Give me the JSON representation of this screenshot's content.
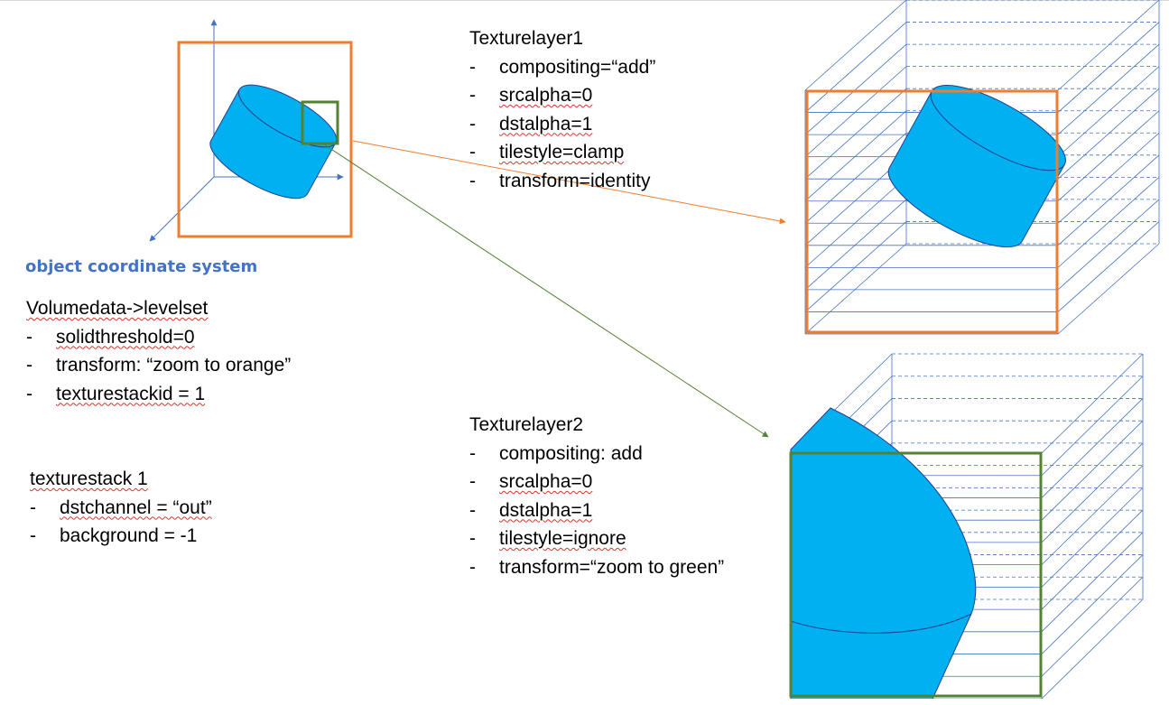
{
  "colors": {
    "orange": "#ed7d31",
    "green": "#548235",
    "cylinder_fill": "#00b0f0",
    "cylinder_stroke": "#1f3f8f",
    "axis": "#4472c4",
    "grid": "#4472c4",
    "label_blue": "#4472c4"
  },
  "object_label": "object coordinate system",
  "volumedata": {
    "heading": "Volumedata->levelset",
    "items": [
      "solidthreshold=0",
      "transform: “zoom to orange”",
      "texturestackid = 1"
    ]
  },
  "texturestack": {
    "heading": "texturestack 1",
    "items": [
      "dstchannel = “out”",
      "background = -1"
    ]
  },
  "layer1": {
    "heading": "Texturelayer1",
    "items": [
      "compositing=“add”",
      "srcalpha=0",
      "dstalpha=1",
      "tilestyle=clamp",
      "transform=identity"
    ]
  },
  "layer2": {
    "heading": "Texturelayer2",
    "items": [
      "compositing: add",
      "srcalpha=0",
      "dstalpha=1",
      "tilestyle=ignore",
      "transform=“zoom to green”"
    ]
  }
}
